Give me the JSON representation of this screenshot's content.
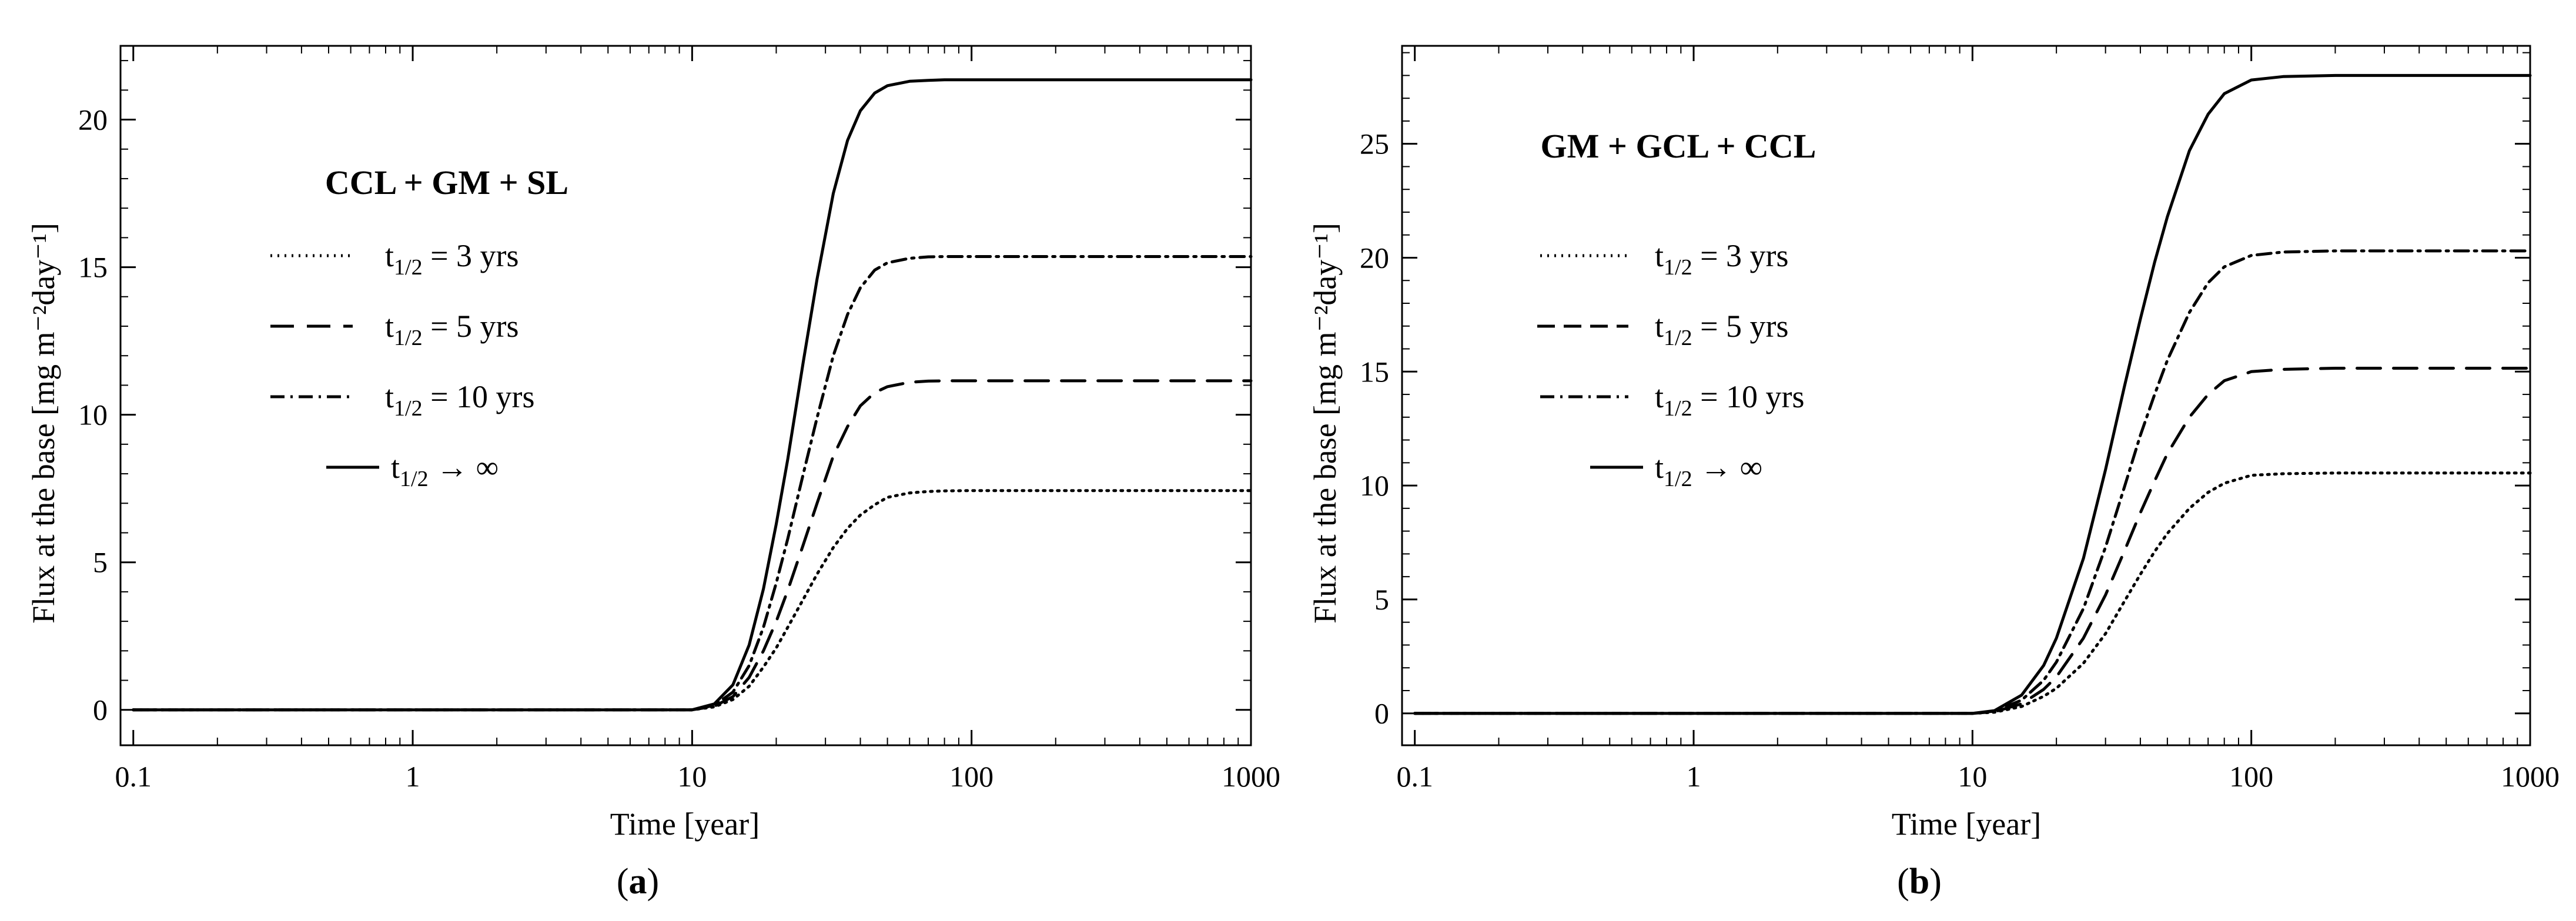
{
  "figure": {
    "captions": [
      {
        "open": "(",
        "letter": "a",
        "close": ")"
      },
      {
        "open": "(",
        "letter": "b",
        "close": ")"
      }
    ]
  },
  "chart_data": [
    {
      "type": "line",
      "panel": "a",
      "title": "CCL + GM + SL",
      "xlabel": "Time [year]",
      "ylabel": "Flux at the base [mg m⁻²day⁻¹]",
      "xscale": "log",
      "xlim": [
        0.09,
        1000
      ],
      "ylim": [
        -1.2,
        22.5
      ],
      "xticks": [
        0.1,
        1,
        10,
        100,
        1000
      ],
      "xtick_labels": [
        "0.1",
        "1",
        "10",
        "100",
        "1000"
      ],
      "yticks": [
        0,
        5,
        10,
        15,
        20
      ],
      "ytick_labels": [
        "0",
        "5",
        "10",
        "15",
        "20"
      ],
      "legend": "upper-left",
      "series": [
        {
          "name": "t1/2 = 3 yrs",
          "label_main": "t",
          "label_sub": "1/2",
          "label_rest": " = 3 yrs",
          "style": "dotted",
          "x": [
            0.1,
            10,
            12,
            14,
            16,
            18,
            20,
            22,
            25,
            28,
            32,
            36,
            40,
            45,
            50,
            60,
            70,
            80,
            100,
            200,
            1000
          ],
          "y": [
            0,
            0,
            0.1,
            0.35,
            0.8,
            1.45,
            2.1,
            2.8,
            3.75,
            4.6,
            5.5,
            6.15,
            6.6,
            6.95,
            7.2,
            7.35,
            7.4,
            7.42,
            7.43,
            7.43,
            7.43
          ]
        },
        {
          "name": "t1/2 = 5 yrs",
          "label_main": "t",
          "label_sub": "1/2",
          "label_rest": " = 5 yrs",
          "style": "dashed",
          "x": [
            0.1,
            10,
            12,
            14,
            16,
            18,
            20,
            22,
            25,
            28,
            32,
            36,
            40,
            45,
            50,
            60,
            70,
            80,
            100,
            200,
            1000
          ],
          "y": [
            0,
            0,
            0.12,
            0.45,
            1.1,
            2.0,
            3.0,
            4.05,
            5.6,
            7.0,
            8.6,
            9.6,
            10.3,
            10.75,
            10.95,
            11.1,
            11.14,
            11.15,
            11.15,
            11.15,
            11.15
          ]
        },
        {
          "name": "t1/2 = 10 yrs",
          "label_main": "t",
          "label_sub": "1/2",
          "label_rest": " = 10 yrs",
          "style": "dashdot",
          "x": [
            0.1,
            10,
            12,
            14,
            16,
            18,
            20,
            22,
            25,
            28,
            32,
            36,
            40,
            45,
            50,
            60,
            70,
            80,
            100,
            200,
            1000
          ],
          "y": [
            0,
            0,
            0.15,
            0.6,
            1.5,
            2.8,
            4.3,
            5.8,
            8.0,
            9.9,
            12.0,
            13.4,
            14.3,
            14.9,
            15.15,
            15.3,
            15.35,
            15.36,
            15.36,
            15.36,
            15.36
          ]
        },
        {
          "name": "t1/2 → ∞",
          "label_main": "t",
          "label_sub": "1/2",
          "label_rest": " → ∞",
          "style": "solid",
          "x": [
            0.1,
            10,
            12,
            14,
            16,
            18,
            20,
            22,
            25,
            28,
            32,
            36,
            40,
            45,
            50,
            60,
            70,
            80,
            100,
            200,
            1000
          ],
          "y": [
            0,
            0,
            0.2,
            0.85,
            2.2,
            4.1,
            6.3,
            8.5,
            11.8,
            14.6,
            17.5,
            19.3,
            20.3,
            20.9,
            21.15,
            21.3,
            21.33,
            21.35,
            21.35,
            21.35,
            21.35
          ]
        }
      ]
    },
    {
      "type": "line",
      "panel": "b",
      "title": "GM + GCL + CCL",
      "xlabel": "Time [year]",
      "ylabel": "Flux at the base [mg m⁻²day⁻¹]",
      "xscale": "log",
      "xlim": [
        0.09,
        1000
      ],
      "ylim": [
        -1.4,
        29.3
      ],
      "xticks": [
        0.1,
        1,
        10,
        100,
        1000
      ],
      "xtick_labels": [
        "0.1",
        "1",
        "10",
        "100",
        "1000"
      ],
      "yticks": [
        0,
        5,
        10,
        15,
        20,
        25
      ],
      "ytick_labels": [
        "0",
        "5",
        "10",
        "15",
        "20",
        "25"
      ],
      "legend": "upper-left",
      "series": [
        {
          "name": "t1/2 = 3 yrs",
          "label_main": "t",
          "label_sub": "1/2",
          "label_rest": " = 3 yrs",
          "style": "dotted",
          "x": [
            0.1,
            10,
            12,
            15,
            18,
            20,
            25,
            30,
            35,
            40,
            45,
            50,
            60,
            70,
            80,
            100,
            130,
            200,
            1000
          ],
          "y": [
            0,
            0,
            0.05,
            0.3,
            0.75,
            1.1,
            2.2,
            3.5,
            4.9,
            6.1,
            7.1,
            7.9,
            9.0,
            9.7,
            10.1,
            10.45,
            10.52,
            10.55,
            10.55
          ]
        },
        {
          "name": "t1/2 = 5 yrs",
          "label_main": "t",
          "label_sub": "1/2",
          "label_rest": " = 5 yrs",
          "style": "dashed",
          "x": [
            0.1,
            10,
            12,
            15,
            18,
            20,
            25,
            30,
            35,
            40,
            45,
            50,
            60,
            70,
            80,
            100,
            130,
            200,
            1000
          ],
          "y": [
            0,
            0,
            0.07,
            0.42,
            1.05,
            1.6,
            3.3,
            5.2,
            7.1,
            8.8,
            10.2,
            11.4,
            13.0,
            14.0,
            14.6,
            15.0,
            15.1,
            15.15,
            15.15
          ]
        },
        {
          "name": "t1/2 = 10 yrs",
          "label_main": "t",
          "label_sub": "1/2",
          "label_rest": " = 10 yrs",
          "style": "dashdot",
          "x": [
            0.1,
            10,
            12,
            15,
            18,
            20,
            25,
            30,
            35,
            40,
            45,
            50,
            60,
            70,
            80,
            100,
            130,
            200,
            1000
          ],
          "y": [
            0,
            0,
            0.1,
            0.58,
            1.45,
            2.25,
            4.6,
            7.3,
            9.9,
            12.2,
            14.0,
            15.5,
            17.6,
            18.9,
            19.6,
            20.1,
            20.25,
            20.3,
            20.3
          ]
        },
        {
          "name": "t1/2 → ∞",
          "label_main": "t",
          "label_sub": "1/2",
          "label_rest": " → ∞",
          "style": "solid",
          "x": [
            0.1,
            10,
            12,
            15,
            18,
            20,
            25,
            30,
            35,
            40,
            45,
            50,
            60,
            70,
            80,
            100,
            130,
            200,
            1000
          ],
          "y": [
            0,
            0,
            0.12,
            0.8,
            2.1,
            3.3,
            6.8,
            10.7,
            14.3,
            17.3,
            19.8,
            21.8,
            24.7,
            26.3,
            27.2,
            27.8,
            27.95,
            28.0,
            28.0
          ]
        }
      ]
    }
  ]
}
